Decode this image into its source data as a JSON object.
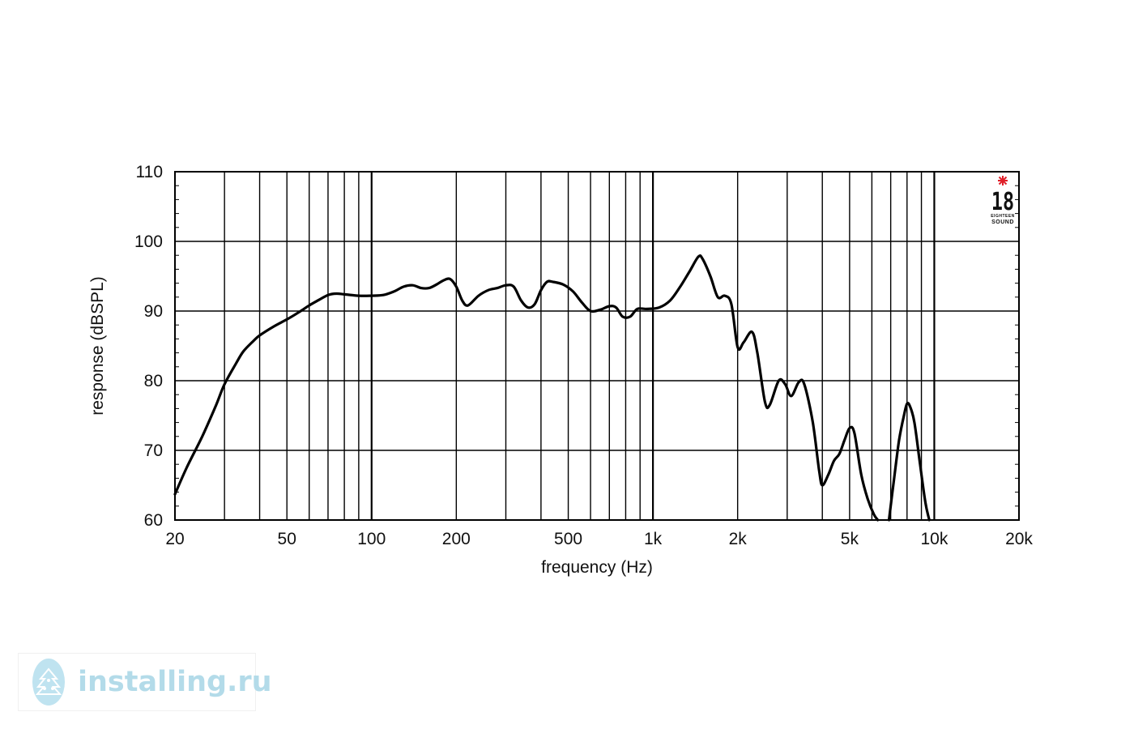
{
  "chart_data": {
    "type": "line",
    "title": "",
    "xlabel": "frequency (Hz)",
    "ylabel": "response (dBSPL)",
    "x_scale": "log",
    "xlim": [
      20,
      20000
    ],
    "ylim": [
      60,
      110
    ],
    "grid": true,
    "x_ticks": [
      {
        "value": 20,
        "label": "20"
      },
      {
        "value": 50,
        "label": "50"
      },
      {
        "value": 100,
        "label": "100"
      },
      {
        "value": 200,
        "label": "200"
      },
      {
        "value": 500,
        "label": "500"
      },
      {
        "value": 1000,
        "label": "1k"
      },
      {
        "value": 2000,
        "label": "2k"
      },
      {
        "value": 5000,
        "label": "5k"
      },
      {
        "value": 10000,
        "label": "10k"
      },
      {
        "value": 20000,
        "label": "20k"
      }
    ],
    "y_ticks": [
      {
        "value": 60,
        "label": "60"
      },
      {
        "value": 70,
        "label": "70"
      },
      {
        "value": 80,
        "label": "80"
      },
      {
        "value": 90,
        "label": "90"
      },
      {
        "value": 100,
        "label": "100"
      },
      {
        "value": 110,
        "label": "110"
      }
    ],
    "x_grid_lines": [
      30,
      40,
      50,
      60,
      70,
      80,
      90,
      200,
      300,
      400,
      500,
      600,
      700,
      800,
      900,
      2000,
      3000,
      4000,
      5000,
      6000,
      7000,
      8000,
      9000
    ],
    "x_major_grid_lines": [
      100,
      1000,
      10000
    ],
    "series": [
      {
        "name": "",
        "color": "#000000",
        "segments": [
          [
            [
              20,
              63.7
            ],
            [
              22,
              67.5
            ],
            [
              25,
              72
            ],
            [
              28,
              76.5
            ],
            [
              30,
              79.5
            ],
            [
              33,
              82.5
            ],
            [
              35,
              84.2
            ],
            [
              38,
              85.7
            ],
            [
              40,
              86.5
            ],
            [
              45,
              87.8
            ],
            [
              50,
              88.8
            ],
            [
              55,
              89.8
            ],
            [
              60,
              90.8
            ],
            [
              65,
              91.6
            ],
            [
              70,
              92.3
            ],
            [
              75,
              92.5
            ],
            [
              80,
              92.4
            ],
            [
              90,
              92.2
            ],
            [
              100,
              92.2
            ],
            [
              110,
              92.3
            ],
            [
              120,
              92.8
            ],
            [
              130,
              93.5
            ],
            [
              140,
              93.7
            ],
            [
              150,
              93.3
            ],
            [
              160,
              93.3
            ],
            [
              170,
              93.8
            ],
            [
              180,
              94.4
            ],
            [
              190,
              94.6
            ],
            [
              200,
              93.5
            ],
            [
              210,
              91.5
            ],
            [
              220,
              90.8
            ],
            [
              240,
              92.2
            ],
            [
              260,
              93.0
            ],
            [
              280,
              93.3
            ],
            [
              300,
              93.7
            ],
            [
              320,
              93.5
            ],
            [
              340,
              91.5
            ],
            [
              360,
              90.5
            ],
            [
              380,
              91.0
            ],
            [
              400,
              93.0
            ],
            [
              420,
              94.2
            ],
            [
              440,
              94.2
            ],
            [
              480,
              93.8
            ],
            [
              520,
              92.8
            ],
            [
              560,
              91.2
            ],
            [
              600,
              90.0
            ],
            [
              650,
              90.2
            ],
            [
              700,
              90.7
            ],
            [
              740,
              90.5
            ],
            [
              780,
              89.2
            ],
            [
              830,
              89.2
            ],
            [
              880,
              90.3
            ],
            [
              950,
              90.3
            ],
            [
              1050,
              90.5
            ],
            [
              1150,
              91.5
            ],
            [
              1250,
              93.5
            ],
            [
              1350,
              95.7
            ],
            [
              1450,
              97.8
            ],
            [
              1500,
              97.5
            ],
            [
              1600,
              95.0
            ],
            [
              1700,
              92.0
            ],
            [
              1800,
              92.2
            ],
            [
              1900,
              91.0
            ],
            [
              2000,
              84.8
            ],
            [
              2100,
              85.5
            ],
            [
              2250,
              87.0
            ],
            [
              2350,
              84.0
            ],
            [
              2500,
              77.0
            ],
            [
              2600,
              76.5
            ],
            [
              2800,
              80.0
            ],
            [
              2950,
              79.5
            ],
            [
              3100,
              77.8
            ],
            [
              3300,
              79.8
            ],
            [
              3450,
              79.5
            ],
            [
              3700,
              74.0
            ],
            [
              3900,
              67.0
            ],
            [
              4000,
              65.0
            ],
            [
              4200,
              66.5
            ],
            [
              4400,
              68.5
            ],
            [
              4600,
              69.5
            ],
            [
              4800,
              71.5
            ],
            [
              5000,
              73.2
            ],
            [
              5200,
              72.5
            ],
            [
              5500,
              66.5
            ],
            [
              5800,
              63.0
            ],
            [
              6100,
              60.8
            ],
            [
              6300,
              60.0
            ]
          ],
          [
            [
              6900,
              60.0
            ],
            [
              7200,
              66.0
            ],
            [
              7500,
              71.5
            ],
            [
              7800,
              75.0
            ],
            [
              8000,
              76.7
            ],
            [
              8200,
              76.3
            ],
            [
              8500,
              74.0
            ],
            [
              8900,
              68.0
            ],
            [
              9300,
              62.5
            ],
            [
              9600,
              60.0
            ]
          ]
        ]
      }
    ]
  },
  "brand_logo": {
    "number": "18",
    "line1": "EIGHTEEN",
    "line2": "SOUND",
    "star_color": "#e0202a"
  },
  "watermark": {
    "text": "installing.ru",
    "color": "#b3dbe9",
    "logo_color": "#bfe3f0"
  }
}
